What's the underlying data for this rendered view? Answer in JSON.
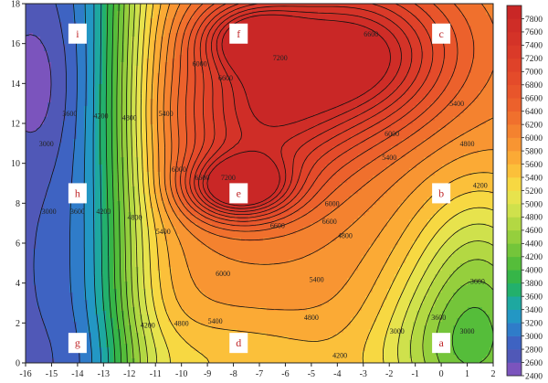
{
  "chart_data": {
    "type": "heatmap",
    "subtype": "filled-contour",
    "title": "",
    "xlabel": "",
    "ylabel": "",
    "xlim": [
      -16,
      2
    ],
    "ylim": [
      0,
      18
    ],
    "x_ticks": [
      "-16",
      "-15",
      "-14",
      "-13",
      "-12",
      "-11",
      "-10",
      "-9",
      "-8",
      "-7",
      "-6",
      "-5",
      "-4",
      "-3",
      "-2",
      "-1",
      "0",
      "1",
      "2"
    ],
    "y_ticks": [
      "0",
      "2",
      "4",
      "6",
      "8",
      "10",
      "12",
      "14",
      "16",
      "18"
    ],
    "colorbar": {
      "placement": "right",
      "range": [
        2400,
        8000
      ],
      "step": 200,
      "tick_labels": [
        "7800",
        "7600",
        "7400",
        "7200",
        "7000",
        "6800",
        "6600",
        "6400",
        "6200",
        "6000",
        "5800",
        "5600",
        "5400",
        "5200",
        "5000",
        "4800",
        "4600",
        "4400",
        "4200",
        "4000",
        "3800",
        "3600",
        "3400",
        "3200",
        "3000",
        "2800",
        "2600",
        "2400"
      ],
      "colors": [
        "#7b54bd",
        "#5058b7",
        "#3e63c2",
        "#2f7cc9",
        "#2397c4",
        "#1ea8a0",
        "#23b06c",
        "#36b548",
        "#55bd3a",
        "#74c53a",
        "#95cf3d",
        "#b3d843",
        "#cfe14c",
        "#e7e34d",
        "#f7d842",
        "#fbc03a",
        "#fbaa35",
        "#f89532",
        "#f4822f",
        "#f0702d",
        "#ec612c",
        "#e8552b",
        "#e44b2a",
        "#df4229",
        "#da3a29",
        "#d43328",
        "#cf2d27",
        "#c92726"
      ]
    },
    "points": [
      {
        "label": "a",
        "x": 0,
        "y": 1
      },
      {
        "label": "b",
        "x": 0,
        "y": 8.5
      },
      {
        "label": "c",
        "x": 0,
        "y": 16.5
      },
      {
        "label": "d",
        "x": -7.8,
        "y": 1
      },
      {
        "label": "e",
        "x": -7.8,
        "y": 8.5
      },
      {
        "label": "f",
        "x": -7.8,
        "y": 16.5
      },
      {
        "label": "g",
        "x": -14,
        "y": 1
      },
      {
        "label": "h",
        "x": -14,
        "y": 8.5
      },
      {
        "label": "i",
        "x": -14,
        "y": 16.5
      }
    ],
    "contour_labels": [
      {
        "text": "7200",
        "x": -6.2,
        "y": 15.3
      },
      {
        "text": "6000",
        "x": -9.3,
        "y": 15.0
      },
      {
        "text": "6600",
        "x": -8.3,
        "y": 14.3
      },
      {
        "text": "6600",
        "x": -2.7,
        "y": 16.5
      },
      {
        "text": "5400",
        "x": 0.6,
        "y": 13.0
      },
      {
        "text": "6000",
        "x": -1.9,
        "y": 11.5
      },
      {
        "text": "5400",
        "x": -2.0,
        "y": 10.3
      },
      {
        "text": "4800",
        "x": 1.0,
        "y": 11.0
      },
      {
        "text": "4200",
        "x": 1.5,
        "y": 8.9
      },
      {
        "text": "3600",
        "x": 1.4,
        "y": 4.1
      },
      {
        "text": "3000",
        "x": 1.0,
        "y": 1.6
      },
      {
        "text": "5400",
        "x": -10.6,
        "y": 12.5
      },
      {
        "text": "4800",
        "x": -12.0,
        "y": 12.3
      },
      {
        "text": "4200",
        "x": -13.1,
        "y": 12.4
      },
      {
        "text": "3600",
        "x": -14.3,
        "y": 12.5
      },
      {
        "text": "3000",
        "x": -15.2,
        "y": 11.0
      },
      {
        "text": "6000",
        "x": -10.1,
        "y": 9.7
      },
      {
        "text": "6600",
        "x": -9.2,
        "y": 9.3
      },
      {
        "text": "7200",
        "x": -8.2,
        "y": 9.3
      },
      {
        "text": "6600",
        "x": -6.3,
        "y": 6.9
      },
      {
        "text": "6600",
        "x": -4.3,
        "y": 7.1
      },
      {
        "text": "6000",
        "x": -4.2,
        "y": 8.0
      },
      {
        "text": "6000",
        "x": -8.4,
        "y": 4.5
      },
      {
        "text": "5400",
        "x": -4.8,
        "y": 4.2
      },
      {
        "text": "4800",
        "x": -3.7,
        "y": 6.4
      },
      {
        "text": "4800",
        "x": -5.0,
        "y": 2.3
      },
      {
        "text": "5400",
        "x": -8.7,
        "y": 2.1
      },
      {
        "text": "5400",
        "x": -10.7,
        "y": 6.6
      },
      {
        "text": "4800",
        "x": -10.0,
        "y": 2.0
      },
      {
        "text": "4800",
        "x": -11.8,
        "y": 7.3
      },
      {
        "text": "4200",
        "x": -11.3,
        "y": 1.9
      },
      {
        "text": "4200",
        "x": -13.0,
        "y": 7.6
      },
      {
        "text": "3600",
        "x": -14.0,
        "y": 7.6
      },
      {
        "text": "3000",
        "x": -15.1,
        "y": 7.6
      },
      {
        "text": "3000",
        "x": -1.7,
        "y": 1.6
      },
      {
        "text": "4200",
        "x": -3.9,
        "y": 0.4
      },
      {
        "text": "3600",
        "x": -0.1,
        "y": 2.3
      }
    ]
  }
}
